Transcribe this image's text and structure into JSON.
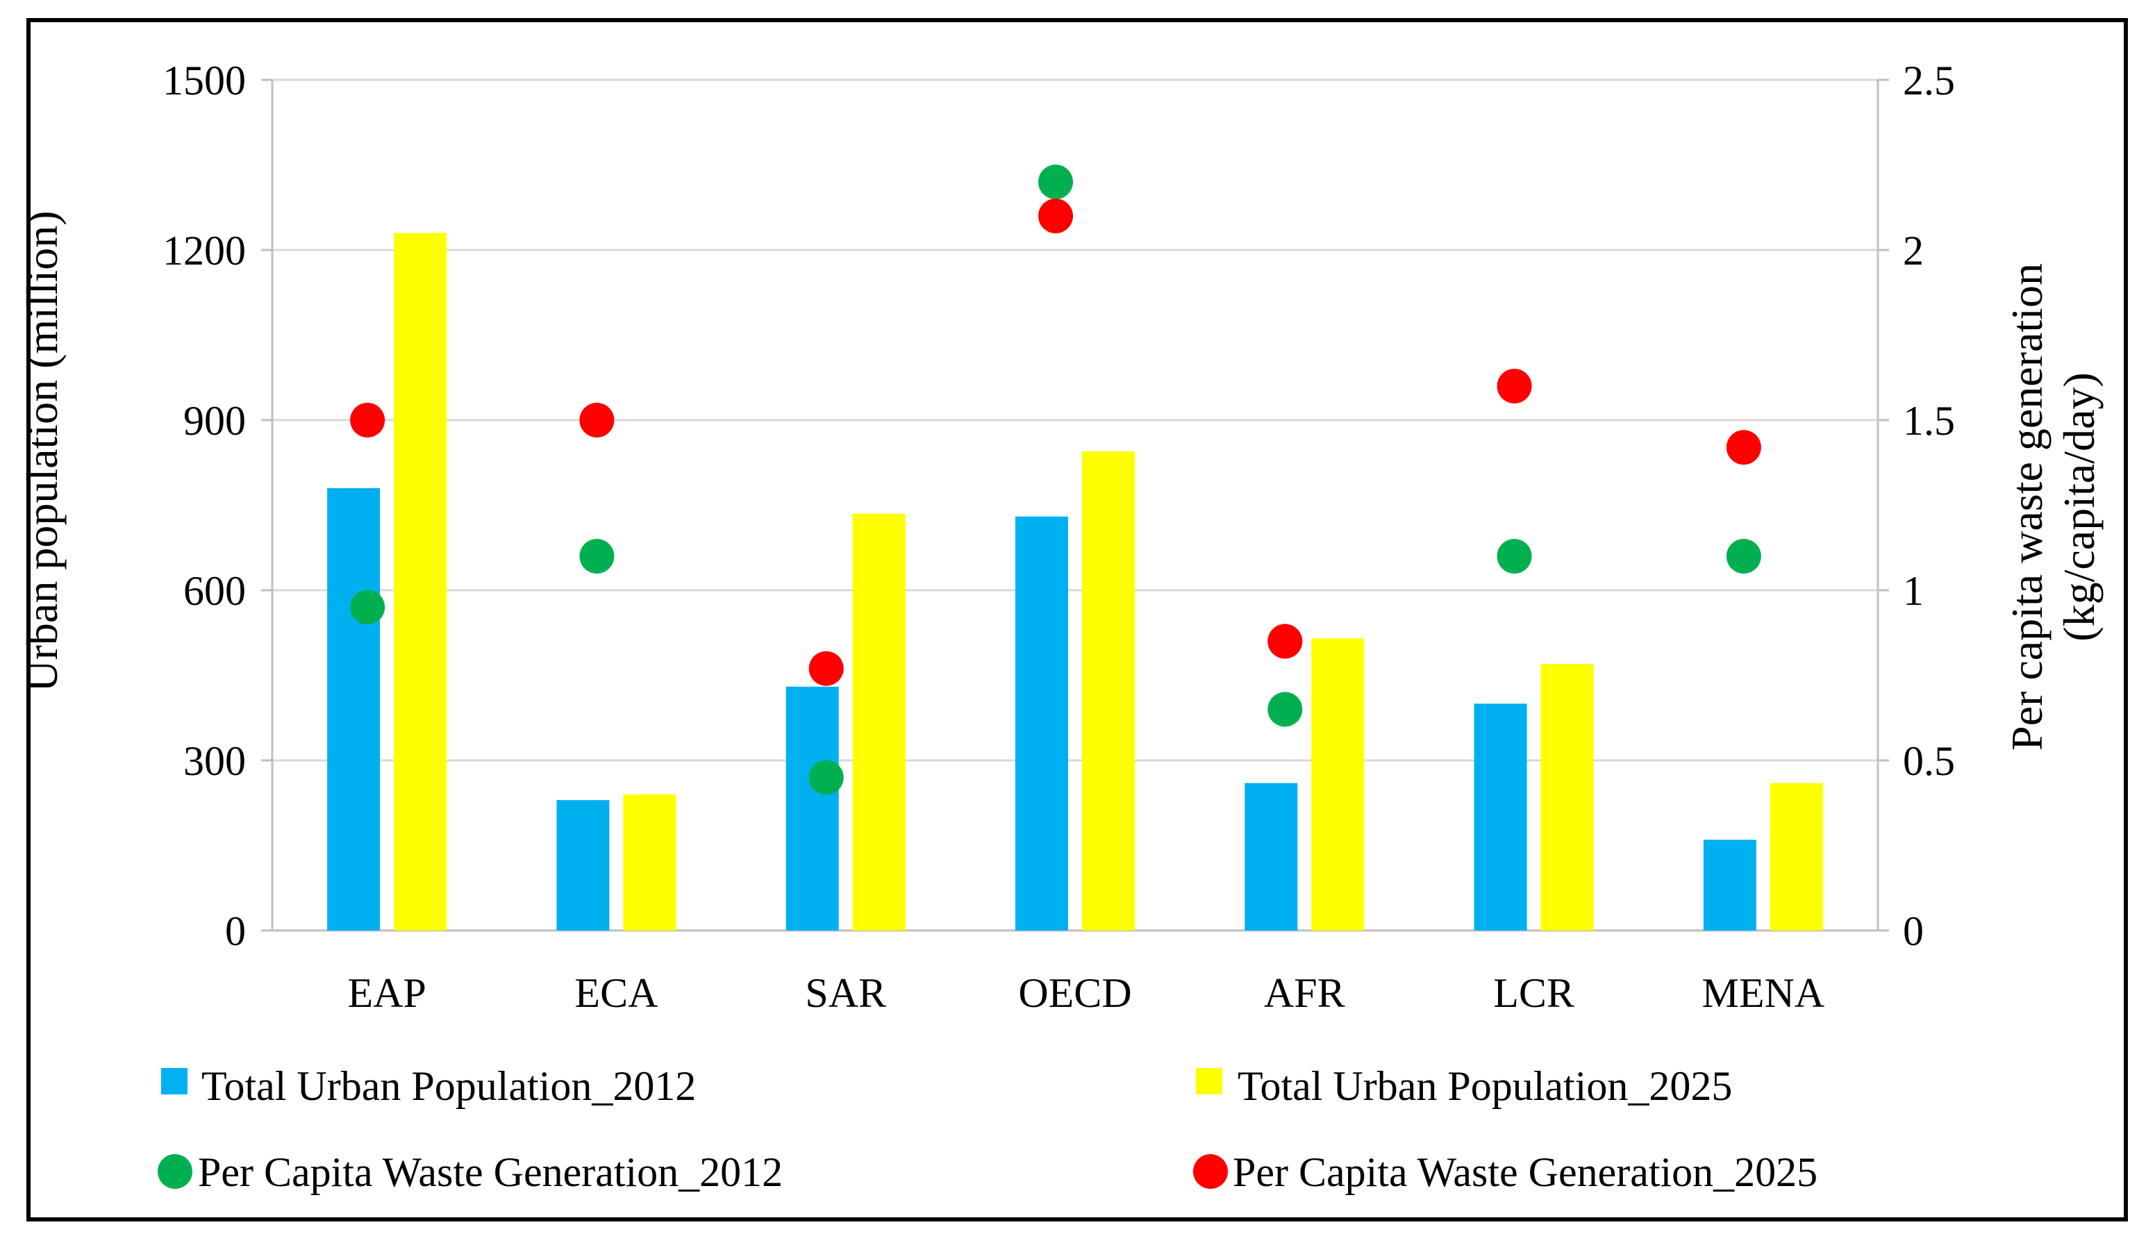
{
  "chart_data": {
    "type": "bar",
    "categories": [
      "EAP",
      "ECA",
      "SAR",
      "OECD",
      "AFR",
      "LCR",
      "MENA"
    ],
    "ylabel": "Urban population (million)",
    "y2label_line1": "Per capita waste generation",
    "y2label_line2": "(kg/capita/day)",
    "ylim": [
      0,
      1500
    ],
    "y2lim": [
      0,
      2.5
    ],
    "yticks": [
      0,
      300,
      600,
      900,
      1200,
      1500
    ],
    "y2ticks": [
      0,
      0.5,
      1,
      1.5,
      2,
      2.5
    ],
    "ytick_labels": [
      "0",
      "300",
      "600",
      "900",
      "1200",
      "1500"
    ],
    "y2tick_labels": [
      "0",
      "0.5",
      "1",
      "1.5",
      "2",
      "2.5"
    ],
    "grid": "horizontal",
    "legend_placement": "bottom",
    "bar_series": [
      {
        "name": "Total Urban Population_2012",
        "color": "#00B0F0",
        "axis": "left",
        "values": [
          780,
          230,
          430,
          730,
          260,
          400,
          160
        ]
      },
      {
        "name": "Total Urban Population_2025",
        "color": "#FFFF00",
        "axis": "left",
        "values": [
          1230,
          240,
          735,
          845,
          515,
          470,
          260
        ]
      }
    ],
    "point_series": [
      {
        "name": "Per Capita Waste Generation_2012",
        "color": "#00B050",
        "axis": "right",
        "values": [
          0.95,
          1.1,
          0.45,
          2.2,
          0.65,
          1.1,
          1.1
        ]
      },
      {
        "name": "Per Capita Waste Generation_2025",
        "color": "#FF0000",
        "axis": "right",
        "values": [
          1.5,
          1.5,
          0.77,
          2.1,
          0.85,
          1.6,
          1.42
        ]
      }
    ]
  }
}
